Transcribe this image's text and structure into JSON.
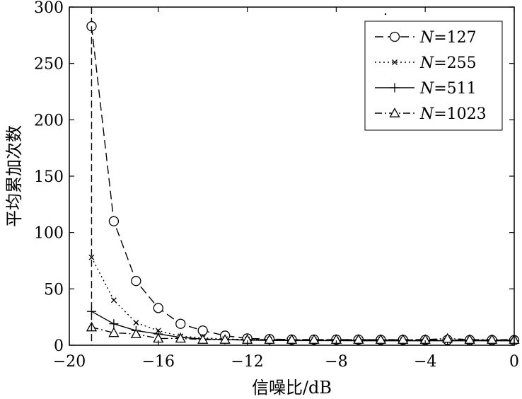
{
  "chart_data": {
    "type": "line",
    "title": "",
    "xlabel": "信噪比/dB",
    "ylabel": "平均累加次数",
    "xlim": [
      -20,
      0
    ],
    "ylim": [
      0,
      300
    ],
    "xticks": [
      -20,
      -16,
      -12,
      -8,
      -4,
      0
    ],
    "xtick_labels": [
      "−20",
      "−16",
      "−12",
      "−8",
      "−4",
      "0"
    ],
    "yticks": [
      0,
      50,
      100,
      150,
      200,
      250,
      300
    ],
    "ytick_labels": [
      "0",
      "50",
      "100",
      "150",
      "200",
      "250",
      "300"
    ],
    "grid": false,
    "legend_position": "top-right",
    "x": [
      -19,
      -18,
      -17,
      -16,
      -15,
      -14,
      -13,
      -12,
      -11,
      -10,
      -9,
      -8,
      -7,
      -6,
      -5,
      -4,
      -3,
      -2,
      -1,
      0
    ],
    "series": [
      {
        "name_italic": "N",
        "name_rest": "=127",
        "line_style": "dashed",
        "marker": "circle",
        "values": [
          283,
          110,
          57,
          33,
          19,
          13,
          8.5,
          6,
          5.5,
          5,
          5,
          5,
          5,
          4.8,
          4.8,
          4.7,
          4.7,
          4.6,
          4.6,
          4.5
        ]
      },
      {
        "name_italic": "N",
        "name_rest": "=255",
        "line_style": "dotted",
        "marker": "x",
        "values": [
          78,
          40,
          20,
          13,
          8,
          6.5,
          5.5,
          5,
          4.8,
          4.6,
          4.6,
          4.5,
          4.5,
          4.5,
          4.4,
          4.4,
          4.4,
          4.4,
          4.3,
          4.3
        ]
      },
      {
        "name_italic": "N",
        "name_rest": "=511",
        "line_style": "solid",
        "marker": "plus",
        "values": [
          30,
          19,
          13,
          10,
          7,
          5.5,
          5,
          4.5,
          4.3,
          4.2,
          4.1,
          4.1,
          4,
          4,
          4,
          4,
          4,
          4,
          4,
          4
        ]
      },
      {
        "name_italic": "N",
        "name_rest": "=1023",
        "line_style": "dashdot",
        "marker": "triangle",
        "values": [
          16,
          11,
          10,
          6,
          6,
          5,
          5,
          5,
          5,
          5,
          5,
          5,
          5,
          5,
          5,
          5,
          6,
          5,
          5,
          5
        ]
      }
    ]
  }
}
